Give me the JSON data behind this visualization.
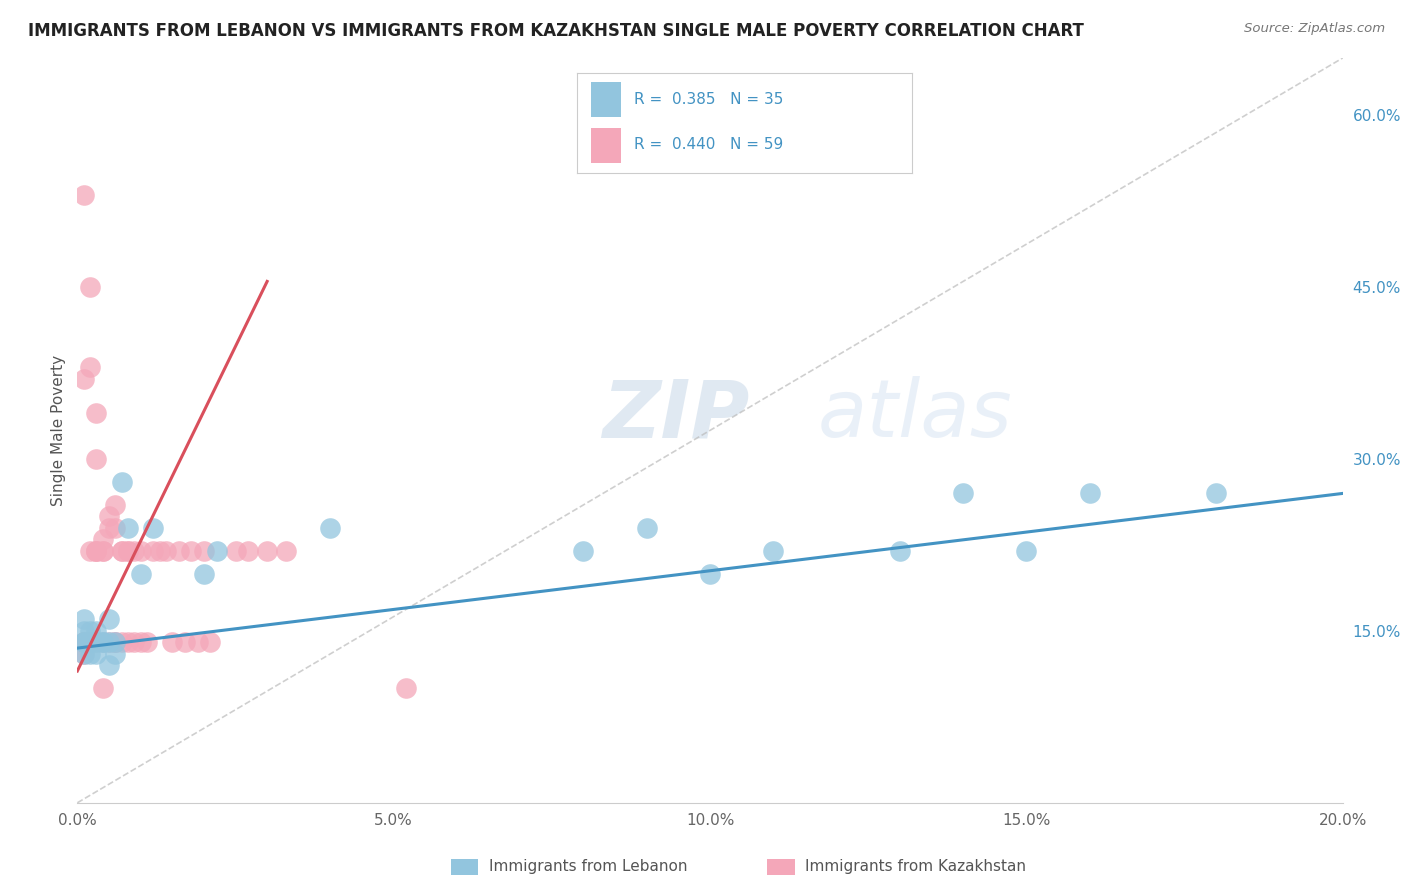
{
  "title": "IMMIGRANTS FROM LEBANON VS IMMIGRANTS FROM KAZAKHSTAN SINGLE MALE POVERTY CORRELATION CHART",
  "source": "Source: ZipAtlas.com",
  "ylabel": "Single Male Poverty",
  "color_blue": "#92C5DE",
  "color_pink": "#F4A7B9",
  "line_blue": "#4393C3",
  "line_pink": "#D94F5C",
  "diag_color": "#BBBBBB",
  "legend_blue_text": "R =  0.385   N = 35",
  "legend_pink_text": "R =  0.440   N = 59",
  "legend_label_blue": "Immigrants from Lebanon",
  "legend_label_pink": "Immigrants from Kazakhstan",
  "blue_scatter_x": [
    0.001,
    0.001,
    0.001,
    0.001,
    0.001,
    0.002,
    0.002,
    0.002,
    0.002,
    0.003,
    0.003,
    0.003,
    0.004,
    0.004,
    0.005,
    0.005,
    0.005,
    0.006,
    0.006,
    0.007,
    0.008,
    0.01,
    0.012,
    0.02,
    0.022,
    0.04,
    0.08,
    0.09,
    0.1,
    0.11,
    0.13,
    0.14,
    0.15,
    0.16,
    0.18
  ],
  "blue_scatter_y": [
    0.14,
    0.13,
    0.15,
    0.16,
    0.14,
    0.14,
    0.13,
    0.15,
    0.14,
    0.13,
    0.14,
    0.15,
    0.14,
    0.14,
    0.12,
    0.14,
    0.16,
    0.13,
    0.14,
    0.28,
    0.24,
    0.2,
    0.24,
    0.2,
    0.22,
    0.24,
    0.22,
    0.24,
    0.2,
    0.22,
    0.22,
    0.27,
    0.22,
    0.27,
    0.27
  ],
  "pink_scatter_x": [
    0.001,
    0.001,
    0.001,
    0.001,
    0.001,
    0.001,
    0.002,
    0.002,
    0.002,
    0.002,
    0.002,
    0.003,
    0.003,
    0.003,
    0.003,
    0.004,
    0.004,
    0.004,
    0.004,
    0.005,
    0.005,
    0.005,
    0.006,
    0.006,
    0.006,
    0.006,
    0.007,
    0.007,
    0.007,
    0.008,
    0.008,
    0.008,
    0.009,
    0.009,
    0.01,
    0.01,
    0.011,
    0.012,
    0.013,
    0.014,
    0.015,
    0.016,
    0.017,
    0.018,
    0.019,
    0.02,
    0.021,
    0.025,
    0.027,
    0.03,
    0.033,
    0.001,
    0.001,
    0.002,
    0.002,
    0.003,
    0.003,
    0.004,
    0.052
  ],
  "pink_scatter_y": [
    0.14,
    0.14,
    0.14,
    0.14,
    0.14,
    0.13,
    0.14,
    0.14,
    0.14,
    0.14,
    0.22,
    0.22,
    0.22,
    0.22,
    0.14,
    0.14,
    0.22,
    0.22,
    0.23,
    0.14,
    0.24,
    0.25,
    0.14,
    0.14,
    0.24,
    0.26,
    0.14,
    0.22,
    0.22,
    0.22,
    0.22,
    0.14,
    0.14,
    0.22,
    0.22,
    0.14,
    0.14,
    0.22,
    0.22,
    0.22,
    0.14,
    0.22,
    0.14,
    0.22,
    0.14,
    0.22,
    0.14,
    0.22,
    0.22,
    0.22,
    0.22,
    0.37,
    0.53,
    0.38,
    0.45,
    0.34,
    0.3,
    0.1,
    0.1
  ],
  "xlim": [
    0.0,
    0.2
  ],
  "ylim": [
    0.0,
    0.65
  ],
  "xticks": [
    0.0,
    0.05,
    0.1,
    0.15,
    0.2
  ],
  "xtick_labels": [
    "0.0%",
    "5.0%",
    "10.0%",
    "15.0%",
    "20.0%"
  ],
  "yticks_right": [
    0.15,
    0.3,
    0.45,
    0.6
  ],
  "ytick_labels_right": [
    "15.0%",
    "30.0%",
    "45.0%",
    "60.0%"
  ],
  "blue_line_x": [
    0.0,
    0.2
  ],
  "blue_line_y": [
    0.135,
    0.27
  ],
  "pink_line_x": [
    0.0,
    0.03
  ],
  "pink_line_y": [
    0.115,
    0.455
  ],
  "diag_line_x": [
    0.0,
    0.2
  ],
  "diag_line_y": [
    0.0,
    0.65
  ]
}
